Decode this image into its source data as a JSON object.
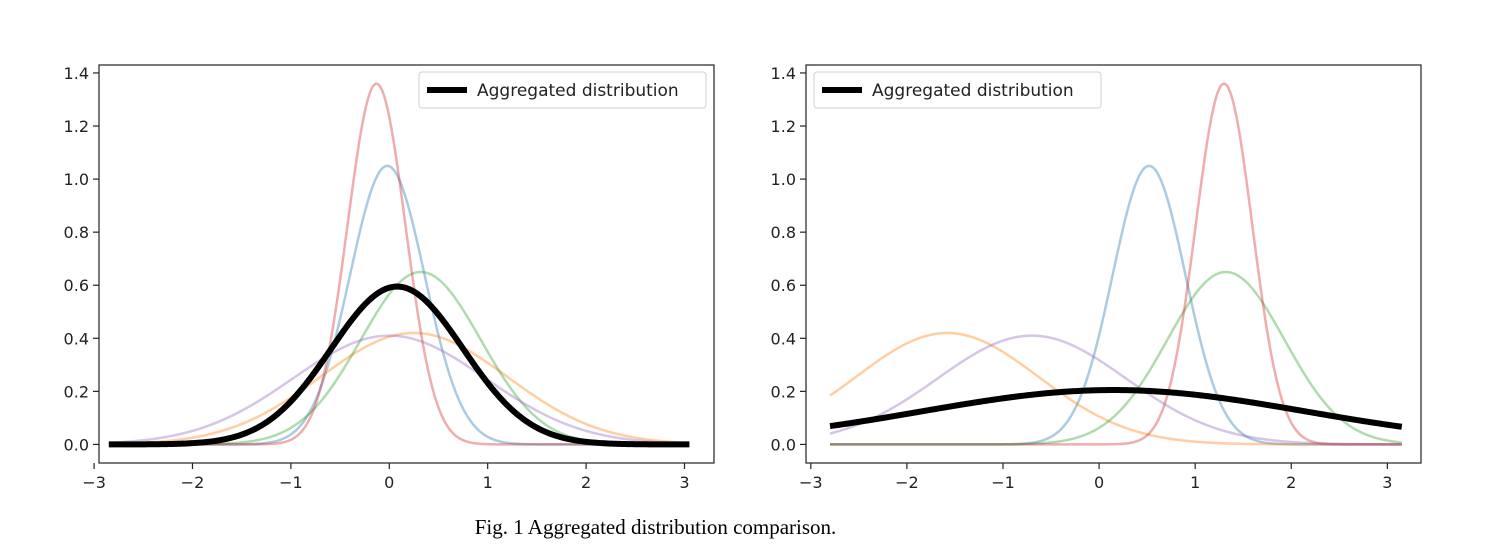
{
  "caption": "Fig. 1 Aggregated distribution comparison.",
  "chart_data": [
    {
      "type": "line",
      "title": "",
      "xlabel": "",
      "ylabel": "",
      "xlim": [
        -2.95,
        3.3
      ],
      "ylim": [
        -0.07,
        1.43
      ],
      "xticks": [
        -3,
        -2,
        -1,
        0,
        1,
        2,
        3
      ],
      "yticks": [
        0.0,
        0.2,
        0.4,
        0.6,
        0.8,
        1.0,
        1.2,
        1.4
      ],
      "x_range": [
        -2.85,
        3.05
      ],
      "legend": {
        "placement": "top-right",
        "entries": [
          "Aggregated distribution"
        ]
      },
      "grid": false,
      "series": [
        {
          "color": "#1f77b4",
          "width": 2.5,
          "opacity": 0.38,
          "mu": -0.02,
          "sigma": 0.38,
          "peak": 1.05
        },
        {
          "color": "#ff7f0e",
          "width": 2.5,
          "opacity": 0.38,
          "mu": 0.25,
          "sigma": 0.95,
          "peak": 0.42
        },
        {
          "color": "#2ca02c",
          "width": 2.5,
          "opacity": 0.38,
          "mu": 0.32,
          "sigma": 0.61,
          "peak": 0.65
        },
        {
          "color": "#d62728",
          "width": 2.5,
          "opacity": 0.38,
          "mu": -0.13,
          "sigma": 0.295,
          "peak": 1.36
        },
        {
          "color": "#9467bd",
          "width": 2.5,
          "opacity": 0.38,
          "mu": 0.0,
          "sigma": 0.98,
          "peak": 0.41
        },
        {
          "name": "Aggregated distribution",
          "color": "#000000",
          "width": 6,
          "opacity": 1,
          "mu": 0.08,
          "sigma": 0.67,
          "peak": 0.595
        }
      ]
    },
    {
      "type": "line",
      "title": "",
      "xlabel": "",
      "ylabel": "",
      "xlim": [
        -3.05,
        3.35
      ],
      "ylim": [
        -0.07,
        1.43
      ],
      "xticks": [
        -3,
        -2,
        -1,
        0,
        1,
        2,
        3
      ],
      "yticks": [
        0.0,
        0.2,
        0.4,
        0.6,
        0.8,
        1.0,
        1.2,
        1.4
      ],
      "x_range": [
        -2.8,
        3.15
      ],
      "legend": {
        "placement": "top-left",
        "entries": [
          "Aggregated distribution"
        ]
      },
      "grid": false,
      "series": [
        {
          "color": "#1f77b4",
          "width": 2.5,
          "opacity": 0.38,
          "mu": 0.52,
          "sigma": 0.38,
          "peak": 1.05
        },
        {
          "color": "#ff7f0e",
          "width": 2.5,
          "opacity": 0.38,
          "mu": -1.58,
          "sigma": 0.95,
          "peak": 0.42
        },
        {
          "color": "#2ca02c",
          "width": 2.5,
          "opacity": 0.38,
          "mu": 1.32,
          "sigma": 0.61,
          "peak": 0.65
        },
        {
          "color": "#d62728",
          "width": 2.5,
          "opacity": 0.38,
          "mu": 1.3,
          "sigma": 0.295,
          "peak": 1.36
        },
        {
          "color": "#9467bd",
          "width": 2.5,
          "opacity": 0.38,
          "mu": -0.7,
          "sigma": 0.98,
          "peak": 0.41
        },
        {
          "name": "Aggregated distribution",
          "color": "#000000",
          "width": 6,
          "opacity": 1,
          "mu": 0.15,
          "sigma": 2.0,
          "peak": 0.205
        }
      ]
    }
  ]
}
